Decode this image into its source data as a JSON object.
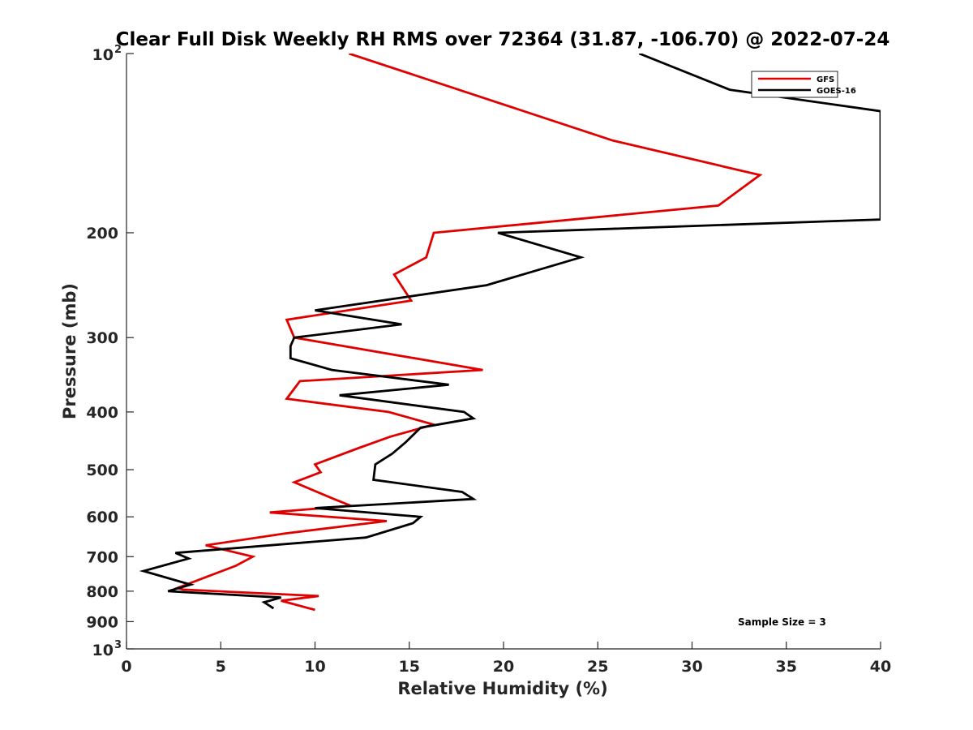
{
  "chart_data": {
    "type": "line",
    "title": "Clear Full Disk Weekly RH RMS over 72364 (31.87, -106.70) @ 2022-07-24",
    "xlabel": "Relative Humidity (%)",
    "ylabel": "Pressure (mb)",
    "xlim": [
      0,
      40
    ],
    "ylim": [
      100,
      1000
    ],
    "y_scale": "log",
    "y_reversed": true,
    "x_ticks": [
      "0",
      "5",
      "10",
      "15",
      "20",
      "25",
      "30",
      "35",
      "40"
    ],
    "y_ticks": [
      {
        "value": 100,
        "base": "10",
        "exp": "2"
      },
      {
        "value": 200,
        "label": "200"
      },
      {
        "value": 300,
        "label": "300"
      },
      {
        "value": 400,
        "label": "400"
      },
      {
        "value": 500,
        "label": "500"
      },
      {
        "value": 600,
        "label": "600"
      },
      {
        "value": 700,
        "label": "700"
      },
      {
        "value": 800,
        "label": "800"
      },
      {
        "value": 900,
        "label": "900"
      },
      {
        "value": 1000,
        "base": "10",
        "exp": "3"
      }
    ],
    "legend_position": "top-right",
    "annotation": "Sample Size = 3",
    "series": [
      {
        "name": "GFS",
        "color": "#e00000",
        "points": [
          [
            11.8,
            100
          ],
          [
            25.8,
            140
          ],
          [
            33.6,
            160
          ],
          [
            31.4,
            180
          ],
          [
            16.3,
            200
          ],
          [
            15.9,
            220
          ],
          [
            14.2,
            235
          ],
          [
            15.1,
            260
          ],
          [
            8.5,
            280
          ],
          [
            8.9,
            300
          ],
          [
            18.9,
            340
          ],
          [
            9.2,
            355
          ],
          [
            8.5,
            380
          ],
          [
            13.9,
            400
          ],
          [
            16.3,
            420
          ],
          [
            14.0,
            440
          ],
          [
            12.3,
            460
          ],
          [
            10.0,
            490
          ],
          [
            10.3,
            505
          ],
          [
            8.9,
            525
          ],
          [
            11.0,
            560
          ],
          [
            11.9,
            575
          ],
          [
            7.6,
            590
          ],
          [
            13.8,
            610
          ],
          [
            8.4,
            640
          ],
          [
            4.2,
            670
          ],
          [
            6.7,
            700
          ],
          [
            5.8,
            725
          ],
          [
            2.7,
            790
          ],
          [
            3.0,
            795
          ],
          [
            10.2,
            815
          ],
          [
            8.2,
            830
          ],
          [
            10.0,
            860
          ]
        ]
      },
      {
        "name": "GOES-16",
        "color": "#000000",
        "points": [
          [
            27.2,
            100
          ],
          [
            32.0,
            115
          ],
          [
            40.0,
            125
          ],
          [
            40.0,
            190
          ],
          [
            19.7,
            200
          ],
          [
            24.1,
            220
          ],
          [
            19.1,
            245
          ],
          [
            10.0,
            270
          ],
          [
            14.6,
            285
          ],
          [
            8.9,
            300
          ],
          [
            8.7,
            310
          ],
          [
            8.7,
            325
          ],
          [
            10.9,
            340
          ],
          [
            17.1,
            360
          ],
          [
            11.3,
            375
          ],
          [
            17.9,
            400
          ],
          [
            18.4,
            410
          ],
          [
            15.6,
            425
          ],
          [
            14.8,
            450
          ],
          [
            14.1,
            470
          ],
          [
            13.2,
            490
          ],
          [
            13.1,
            520
          ],
          [
            17.8,
            545
          ],
          [
            18.4,
            560
          ],
          [
            10.0,
            580
          ],
          [
            15.6,
            600
          ],
          [
            15.2,
            615
          ],
          [
            12.7,
            650
          ],
          [
            2.6,
            690
          ],
          [
            3.3,
            705
          ],
          [
            0.9,
            740
          ],
          [
            3.4,
            780
          ],
          [
            2.2,
            800
          ],
          [
            8.2,
            820
          ],
          [
            7.3,
            835
          ],
          [
            7.8,
            855
          ]
        ]
      }
    ]
  }
}
